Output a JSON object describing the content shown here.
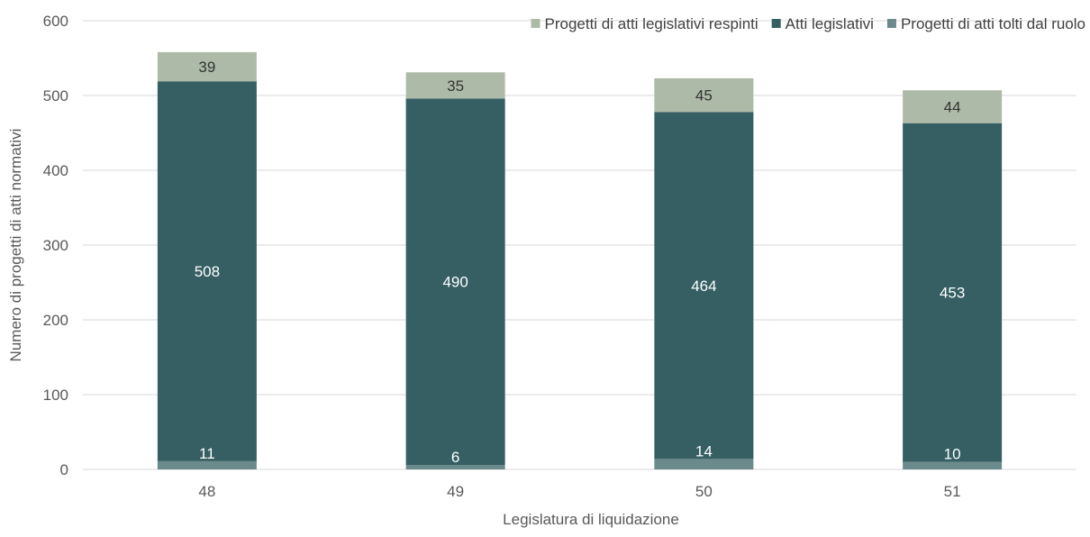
{
  "chart_data": {
    "type": "bar",
    "stacked": true,
    "title": "",
    "xlabel": "Legislatura di liquidazione",
    "ylabel": "Numero di progetti di atti normativi",
    "ylim": [
      0,
      600
    ],
    "yticks": [
      0,
      100,
      200,
      300,
      400,
      500,
      600
    ],
    "grid": true,
    "legend_position": "top-right",
    "categories": [
      "48",
      "49",
      "50",
      "51"
    ],
    "series": [
      {
        "name": "Progetti di atti tolti dal ruolo",
        "color": "#6b8a8c",
        "label_color": "#ffffff",
        "values": [
          11,
          6,
          14,
          10
        ]
      },
      {
        "name": "Atti legislativi",
        "color": "#355f63",
        "label_color": "#ffffff",
        "values": [
          508,
          490,
          464,
          453
        ]
      },
      {
        "name": "Progetti di atti legislativi respinti",
        "color": "#aebaa8",
        "label_color": "#333333",
        "values": [
          39,
          35,
          45,
          44
        ]
      }
    ],
    "legend_order": [
      "Progetti di atti legislativi respinti",
      "Atti legislativi",
      "Progetti di atti tolti dal ruolo"
    ]
  }
}
